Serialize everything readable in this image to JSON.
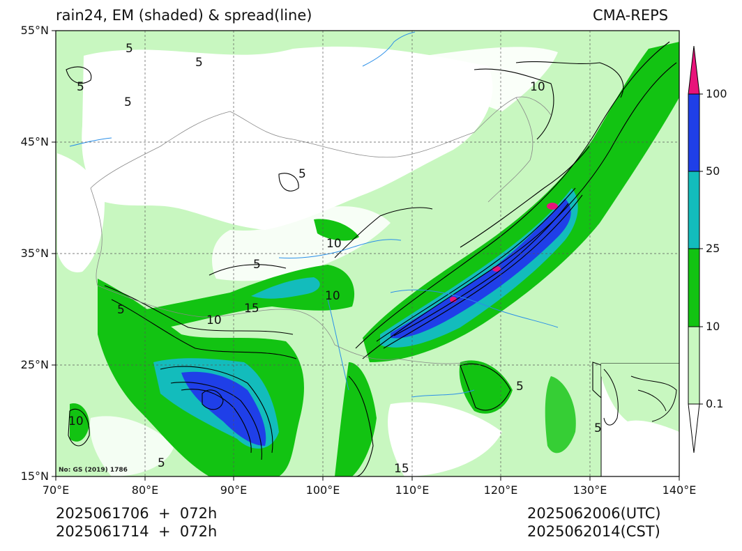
{
  "title_left": "rain24, EM (shaded) & spread(line)",
  "title_right": "CMA-REPS",
  "lat_labels": [
    "55°N",
    "45°N",
    "35°N",
    "25°N",
    "15°N"
  ],
  "lon_labels": [
    "70°E",
    "80°E",
    "90°E",
    "100°E",
    "110°E",
    "120°E",
    "130°E",
    "140°E"
  ],
  "colorbar": {
    "labels": [
      "0.1",
      "10",
      "25",
      "50",
      "100"
    ],
    "colors": [
      "#ffffff",
      "#c8f7c0",
      "#12c312",
      "#13bcbc",
      "#1f3fe8",
      "#e8137a"
    ]
  },
  "contour_labels": [
    "5",
    "5",
    "5",
    "5",
    "10",
    "10",
    "15",
    "10",
    "5",
    "5",
    "5",
    "5",
    "10",
    "5",
    "5",
    "10",
    "15"
  ],
  "map_note": "No: GS (2019) 1786",
  "footer": {
    "init_utc": "2025061706  +  072h",
    "init_cst": "2025061714  +  072h",
    "valid_utc": "2025062006(UTC)",
    "valid_cst": "2025062014(CST)"
  },
  "shading_colors": {
    "light": "#c8f7c0",
    "green": "#12c312",
    "teal": "#13bcbc",
    "blue": "#1f3fe8",
    "magenta": "#e8137a",
    "river": "#2a8fe8"
  }
}
